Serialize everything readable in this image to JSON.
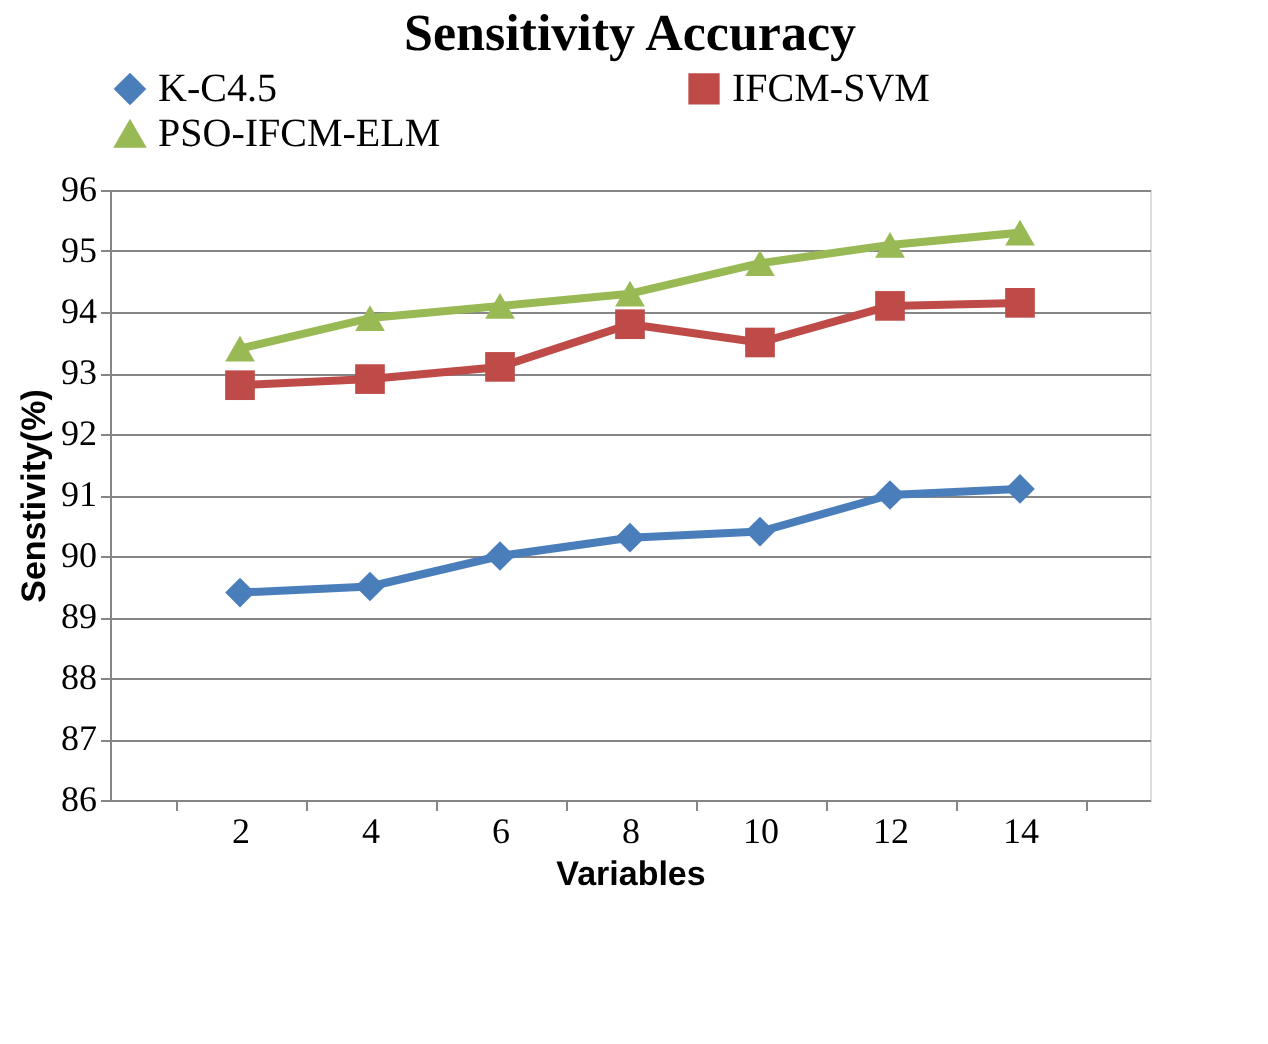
{
  "chart_data": {
    "type": "line",
    "title": "Sensitivity  Accuracy",
    "xlabel": "Variables",
    "ylabel": "Senstivity(%)",
    "categories": [
      "2",
      "4",
      "6",
      "8",
      "10",
      "12",
      "14"
    ],
    "series": [
      {
        "name": "K-C4.5",
        "color": "#4a7ebb",
        "marker": "diamond",
        "values": [
          89.4,
          89.5,
          90.0,
          90.3,
          90.4,
          91.0,
          91.1
        ]
      },
      {
        "name": "IFCM-SVM",
        "color": "#be4b48",
        "marker": "square",
        "values": [
          92.8,
          92.9,
          93.1,
          93.8,
          93.5,
          94.1,
          94.15
        ]
      },
      {
        "name": "PSO-IFCM-ELM",
        "color": "#98b954",
        "marker": "triangle",
        "values": [
          93.4,
          93.9,
          94.1,
          94.3,
          94.8,
          95.1,
          95.3
        ]
      }
    ],
    "ylim": [
      86,
      96
    ],
    "yticks": [
      86,
      87,
      88,
      89,
      90,
      91,
      92,
      93,
      94,
      95,
      96
    ],
    "grid": "y",
    "legend": "top",
    "line_style": "solid"
  }
}
